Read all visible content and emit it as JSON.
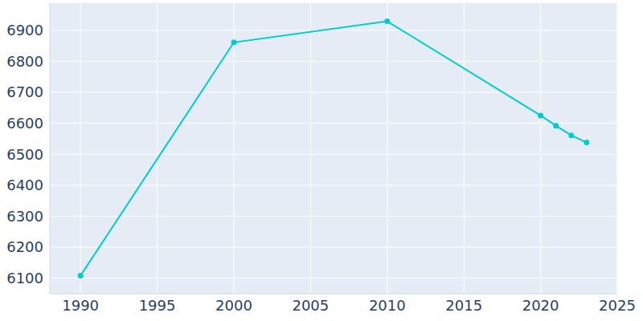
{
  "chart_data": {
    "type": "line",
    "x": [
      1990,
      2000,
      2010,
      2020,
      2021,
      2022,
      2023
    ],
    "values": [
      6108,
      6861,
      6929,
      6625,
      6592,
      6561,
      6538
    ],
    "color": "#00cccc",
    "xlim": [
      1988,
      2025
    ],
    "xticks": [
      1990,
      1995,
      2000,
      2005,
      2010,
      2015,
      2020,
      2025
    ],
    "ylim": [
      6050,
      6990
    ],
    "yticks": [
      6100,
      6200,
      6300,
      6400,
      6500,
      6600,
      6700,
      6800,
      6900
    ],
    "grid": true,
    "marker": "circle"
  }
}
